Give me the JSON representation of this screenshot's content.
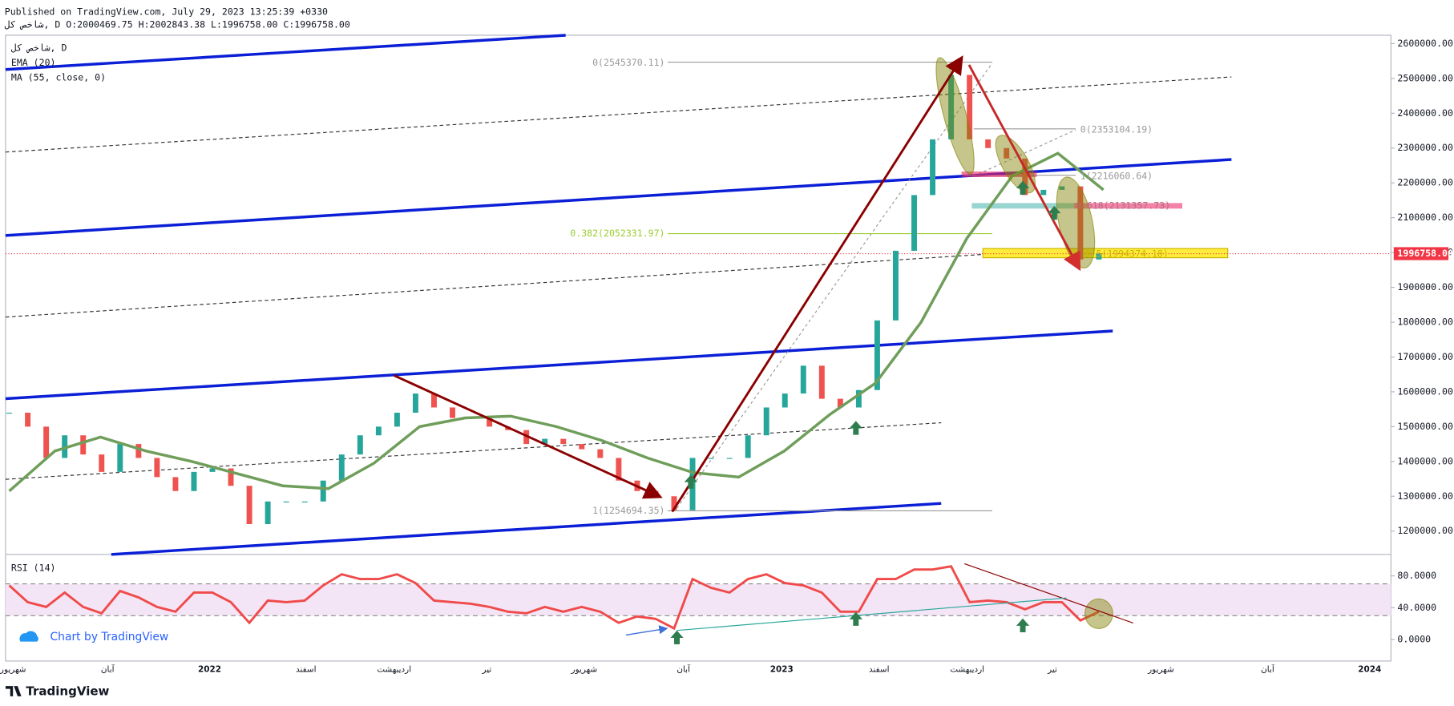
{
  "header": {
    "published": "Published on TradingView.com, July 29, 2023 13:25:39 +0330",
    "symbol_line": "شاخص کل, D O:2000469.75 H:2002843.38 L:1996758.00 C:1996758.00"
  },
  "chart_data": [
    {
      "type": "candlestick",
      "legend": [
        "شاخص کل, D",
        "EMA (20)",
        "MA (55, close, 0)"
      ],
      "closes": [
        1540000,
        1500000,
        1410000,
        1475000,
        1420000,
        1370000,
        1450000,
        1410000,
        1355000,
        1315000,
        1370000,
        1380000,
        1330000,
        1220000,
        1285000,
        1285000,
        1285000,
        1345000,
        1420000,
        1475000,
        1500000,
        1540000,
        1595000,
        1555000,
        1525000,
        1525000,
        1500000,
        1490000,
        1450000,
        1465000,
        1450000,
        1435000,
        1410000,
        1345000,
        1315000,
        1300000,
        1260000,
        1410000,
        1410000,
        1410000,
        1475000,
        1555000,
        1595000,
        1675000,
        1580000,
        1555000,
        1605000,
        1805000,
        2005000,
        2165000,
        2325000,
        2510000,
        2325000,
        2300000,
        2270000,
        2165000,
        2180000,
        2190000,
        1980000,
        1996758
      ],
      "up_color": "#26a69a",
      "down_color": "#ef5350",
      "ma": {
        "color": "#6f9e5a",
        "values": [
          1315000,
          1430000,
          1470000,
          1430000,
          1400000,
          1365000,
          1330000,
          1322000,
          1395000,
          1500000,
          1525000,
          1530000,
          1500000,
          1460000,
          1410000,
          1368000,
          1355000,
          1430000,
          1535000,
          1625000,
          1800000,
          2040000,
          2220000,
          2285000,
          2180000
        ]
      },
      "ylim": [
        1133000,
        2624000
      ],
      "yticks": [
        {
          "value": 1200000,
          "label": "1200000.00"
        },
        {
          "value": 1300000,
          "label": "1300000.00"
        },
        {
          "value": 1400000,
          "label": "1400000.00"
        },
        {
          "value": 1500000,
          "label": "1500000.00"
        },
        {
          "value": 1600000,
          "label": "1600000.00"
        },
        {
          "value": 1700000,
          "label": "1700000.00"
        },
        {
          "value": 1800000,
          "label": "1800000.00"
        },
        {
          "value": 1900000,
          "label": "1900000.00"
        },
        {
          "value": 2000000,
          "label": "2000000.00"
        },
        {
          "value": 2100000,
          "label": "2100000.00"
        },
        {
          "value": 2200000,
          "label": "2200000.00"
        },
        {
          "value": 2300000,
          "label": "2300000.00"
        },
        {
          "value": 2400000,
          "label": "2400000.00"
        },
        {
          "value": 2500000,
          "label": "2500000.00"
        },
        {
          "value": 2600000,
          "label": "2600000.00"
        }
      ],
      "last_price": {
        "value": 1996758,
        "label": "1996758.00",
        "color": "#f23645"
      },
      "annotations": [
        "0(2545370.11)",
        "0(2353104.19)",
        "1(2216060.64)",
        "0.382(2052331.97)",
        "0.618(2131357.73)",
        "0.5(1994374.18)",
        "1(1254694.35)"
      ],
      "xlabels": [
        "شهریور",
        "آبان",
        "2022",
        "اسفند",
        "اردیبهشت",
        "تیر",
        "شهریور",
        "آبان",
        "2023",
        "اسفند",
        "اردیبهشت",
        "تیر",
        "شهریور",
        "آبان",
        "2024"
      ]
    },
    {
      "type": "line",
      "legend": "RSI (14)",
      "color": "#f04a4a",
      "values": [
        68,
        47,
        41,
        59,
        41,
        33,
        61,
        53,
        41,
        35,
        59,
        59,
        47,
        21,
        49,
        47,
        49,
        68,
        82,
        76,
        76,
        82,
        71,
        49,
        47,
        45,
        41,
        35,
        33,
        41,
        35,
        41,
        35,
        21,
        29,
        26,
        14,
        76,
        65,
        59,
        76,
        82,
        71,
        68,
        59,
        35,
        35,
        76,
        76,
        88,
        88,
        92,
        47,
        49,
        47,
        38,
        47,
        47,
        24,
        35
      ],
      "ylim": [
        -27,
        107
      ],
      "yticks": [
        {
          "value": 0,
          "label": "0.0000"
        },
        {
          "value": 40,
          "label": "40.0000"
        },
        {
          "value": 80,
          "label": "80.0000"
        }
      ],
      "band": [
        30,
        70
      ]
    }
  ],
  "watermark": "Chart by TradingView",
  "footer": "TradingView"
}
